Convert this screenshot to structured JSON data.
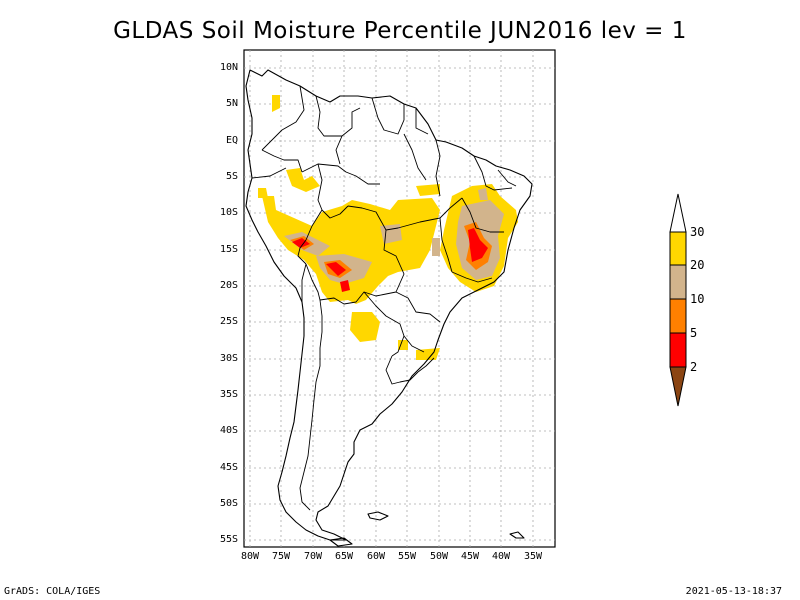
{
  "title": "GLDAS Soil Moisture Percentile JUN2016 lev = 1",
  "footer_left": "GrADS: COLA/IGES",
  "footer_right": "2021-05-13-18:37",
  "map": {
    "lat_labels": [
      "10N",
      "5N",
      "EQ",
      "5S",
      "10S",
      "15S",
      "20S",
      "25S",
      "30S",
      "35S",
      "40S",
      "45S",
      "50S",
      "55S"
    ],
    "lon_labels": [
      "80W",
      "75W",
      "70W",
      "65W",
      "60W",
      "55W",
      "50W",
      "45W",
      "40W",
      "35W"
    ],
    "lon_range": [
      -81,
      -34
    ],
    "lat_range": [
      -56,
      11
    ],
    "grid": true
  },
  "legend": {
    "labels": [
      "2",
      "5",
      "10",
      "20",
      "30"
    ],
    "colors": {
      "below_2": "#8b4513",
      "2_5": "#ff0000",
      "5_10": "#ff8000",
      "10_20": "#d2b48c",
      "20_30": "#ffd700",
      "above_30": "#ffffff"
    }
  }
}
